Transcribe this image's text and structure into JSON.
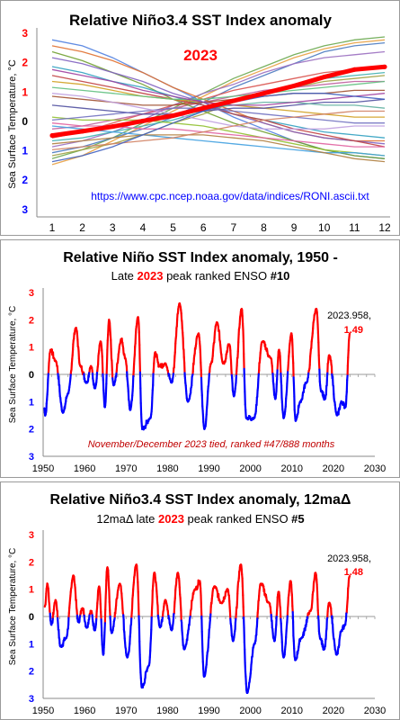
{
  "chart_data": [
    {
      "type": "line",
      "title": "Relative Niño3.4 SST Index anomaly",
      "ylabel": "Sea Surface Temperature, °C",
      "annotation_year": "2023",
      "source_text": "https://www.cpc.ncep.noaa.gov/data/indices/RONI.ascii.txt",
      "x": [
        1,
        2,
        3,
        4,
        5,
        6,
        7,
        8,
        9,
        10,
        11,
        12
      ],
      "xlim": [
        1,
        12
      ],
      "ylim": [
        -2.5,
        2.5
      ],
      "y_ticks": [
        "3",
        "2",
        "1",
        "0",
        "1",
        "2",
        "3"
      ],
      "highlight_series": {
        "name": "2023",
        "color": "#ff0000",
        "values": [
          -0.82,
          -0.68,
          -0.52,
          -0.33,
          -0.15,
          0.1,
          0.35,
          0.6,
          0.85,
          1.15,
          1.4,
          1.49
        ]
      },
      "background_series": [
        {
          "color": "#e8a040",
          "values": [
            -1.8,
            -1.5,
            -1.0,
            -0.5,
            0.0,
            0.5,
            1.0,
            1.4,
            1.8,
            2.1,
            2.3,
            2.4
          ]
        },
        {
          "color": "#6aa84f",
          "values": [
            -1.6,
            -1.3,
            -0.9,
            -0.4,
            0.1,
            0.6,
            1.1,
            1.5,
            1.9,
            2.2,
            2.4,
            2.5
          ]
        },
        {
          "color": "#4a7ac0",
          "values": [
            -1.4,
            -1.2,
            -0.9,
            -0.6,
            -0.2,
            0.3,
            0.8,
            1.2,
            1.6,
            2.0,
            2.2,
            2.3
          ]
        },
        {
          "color": "#9a6ec0",
          "values": [
            -1.2,
            -1.0,
            -0.7,
            -0.3,
            0.2,
            0.6,
            0.9,
            1.3,
            1.6,
            1.8,
            1.9,
            2.0
          ]
        },
        {
          "color": "#d9534f",
          "values": [
            -0.9,
            -0.7,
            -0.4,
            -0.1,
            0.2,
            0.4,
            0.7,
            0.9,
            1.1,
            1.3,
            1.4,
            1.5
          ]
        },
        {
          "color": "#40b0b0",
          "values": [
            -1.0,
            -0.9,
            -0.7,
            -0.5,
            -0.3,
            0.0,
            0.3,
            0.6,
            0.9,
            1.1,
            1.2,
            1.3
          ]
        },
        {
          "color": "#a0a040",
          "values": [
            -1.5,
            -1.3,
            -1.1,
            -0.8,
            -0.4,
            -0.1,
            0.3,
            0.6,
            0.8,
            1.0,
            1.1,
            1.2
          ]
        },
        {
          "color": "#c060a0",
          "values": [
            -0.6,
            -0.5,
            -0.3,
            -0.1,
            0.1,
            0.3,
            0.5,
            0.7,
            0.8,
            0.9,
            1.0,
            1.0
          ]
        },
        {
          "color": "#5080e0",
          "values": [
            2.4,
            2.2,
            1.8,
            1.3,
            0.8,
            0.3,
            -0.2,
            -0.6,
            -1.0,
            -1.3,
            -1.5,
            -1.6
          ]
        },
        {
          "color": "#e07030",
          "values": [
            2.2,
            2.0,
            1.7,
            1.3,
            0.8,
            0.4,
            0.0,
            -0.4,
            -0.7,
            -0.9,
            -1.0,
            -1.0
          ]
        },
        {
          "color": "#70a030",
          "values": [
            2.0,
            1.7,
            1.3,
            0.9,
            0.4,
            0.0,
            -0.4,
            -0.7,
            -1.0,
            -1.3,
            -1.5,
            -1.6
          ]
        },
        {
          "color": "#8060c0",
          "values": [
            1.8,
            1.6,
            1.3,
            1.0,
            0.6,
            0.3,
            -0.1,
            -0.4,
            -0.7,
            -0.9,
            -1.0,
            -1.1
          ]
        },
        {
          "color": "#30a0c0",
          "values": [
            1.5,
            1.3,
            1.0,
            0.8,
            0.5,
            0.2,
            -0.1,
            -0.3,
            -0.5,
            -0.7,
            -0.8,
            -0.9
          ]
        },
        {
          "color": "#c04040",
          "values": [
            1.2,
            1.0,
            0.8,
            0.6,
            0.4,
            0.2,
            -0.1,
            -0.3,
            -0.6,
            -0.8,
            -1.0,
            -1.2
          ]
        },
        {
          "color": "#d0a020",
          "values": [
            1.0,
            0.9,
            0.7,
            0.5,
            0.4,
            0.3,
            0.2,
            0.1,
            0.0,
            -0.1,
            -0.2,
            -0.2
          ]
        },
        {
          "color": "#60c080",
          "values": [
            0.8,
            0.7,
            0.6,
            0.5,
            0.4,
            0.4,
            0.5,
            0.6,
            0.7,
            0.8,
            0.9,
            1.0
          ]
        },
        {
          "color": "#a05030",
          "values": [
            0.5,
            0.4,
            0.3,
            0.2,
            0.2,
            0.3,
            0.4,
            0.5,
            0.6,
            0.6,
            0.7,
            0.7
          ]
        },
        {
          "color": "#5050a0",
          "values": [
            0.2,
            0.1,
            0.0,
            -0.1,
            -0.1,
            0.0,
            0.1,
            0.1,
            0.2,
            0.3,
            0.3,
            0.4
          ]
        },
        {
          "color": "#90c030",
          "values": [
            -0.2,
            -0.3,
            -0.3,
            -0.3,
            -0.4,
            -0.5,
            -0.7,
            -0.9,
            -1.1,
            -1.3,
            -1.4,
            -1.5
          ]
        },
        {
          "color": "#e060a0",
          "values": [
            -0.4,
            -0.5,
            -0.5,
            -0.6,
            -0.6,
            -0.7,
            -0.8,
            -0.9,
            -1.0,
            -1.1,
            -1.2,
            -1.2
          ]
        },
        {
          "color": "#40a0e0",
          "values": [
            -0.5,
            -0.6,
            -0.7,
            -0.8,
            -0.9,
            -1.0,
            -1.1,
            -1.2,
            -1.3,
            -1.4,
            -1.4,
            -1.5
          ]
        },
        {
          "color": "#b08040",
          "values": [
            -1.1,
            -1.0,
            -0.9,
            -0.8,
            -0.8,
            -0.8,
            -0.9,
            -1.0,
            -1.2,
            -1.4,
            -1.6,
            -1.7
          ]
        },
        {
          "color": "#7070c0",
          "values": [
            -0.3,
            -0.2,
            -0.1,
            0.0,
            0.1,
            0.1,
            0.0,
            -0.1,
            -0.2,
            -0.3,
            -0.4,
            -0.4
          ]
        },
        {
          "color": "#c0a0e0",
          "values": [
            0.6,
            0.5,
            0.3,
            0.1,
            -0.1,
            -0.3,
            -0.5,
            -0.6,
            -0.6,
            -0.6,
            -0.5,
            -0.5
          ]
        },
        {
          "color": "#60b0a0",
          "values": [
            -0.8,
            -0.7,
            -0.5,
            -0.3,
            -0.1,
            0.1,
            0.2,
            0.3,
            0.3,
            0.2,
            0.2,
            0.1
          ]
        },
        {
          "color": "#d08060",
          "values": [
            -1.3,
            -1.2,
            -1.1,
            -1.0,
            -0.9,
            -0.7,
            -0.5,
            -0.3,
            -0.2,
            -0.1,
            0.0,
            0.0
          ]
        },
        {
          "color": "#a040a0",
          "values": [
            1.4,
            1.2,
            1.0,
            0.7,
            0.5,
            0.3,
            0.2,
            0.2,
            0.3,
            0.4,
            0.5,
            0.6
          ]
        },
        {
          "color": "#4060c0",
          "values": [
            -1.7,
            -1.5,
            -1.2,
            -0.8,
            -0.4,
            0.0,
            0.3,
            0.5,
            0.6,
            0.6,
            0.5,
            0.4
          ]
        }
      ]
    },
    {
      "type": "area",
      "title": "Relative Niño SST Index anomaly, 1950 -",
      "subtitle_pre": "Late ",
      "subtitle_year": "2023",
      "subtitle_post": " peak ranked ENSO ",
      "subtitle_rank": "#10",
      "ylabel": "Sea Surface Temperature, °C",
      "peak_label": "2023.958,",
      "peak_value": "1.49",
      "note": "November/December 2023 tied, ranked #47/888 months",
      "x_ticks": [
        "1950",
        "1960",
        "1970",
        "1980",
        "1990",
        "2000",
        "2010",
        "2020",
        "2030"
      ],
      "y_ticks": [
        "3",
        "2",
        "1",
        "0",
        "1",
        "2",
        "3"
      ],
      "xlim": [
        1950,
        2030
      ],
      "ylim": [
        -3,
        3
      ],
      "positive_color": "#ff0000",
      "negative_color": "#0000ff",
      "events": [
        [
          1950.5,
          -1.5
        ],
        [
          1951.8,
          0.9
        ],
        [
          1953.0,
          0.5
        ],
        [
          1954.8,
          -1.4
        ],
        [
          1956.0,
          -0.7
        ],
        [
          1957.9,
          1.7
        ],
        [
          1959.0,
          0.3
        ],
        [
          1960.5,
          -0.3
        ],
        [
          1961.5,
          0.3
        ],
        [
          1962.5,
          -0.5
        ],
        [
          1963.9,
          1.2
        ],
        [
          1964.9,
          -1.2
        ],
        [
          1965.9,
          2.0
        ],
        [
          1967.0,
          -0.4
        ],
        [
          1968.9,
          1.3
        ],
        [
          1969.8,
          0.6
        ],
        [
          1971.0,
          -1.3
        ],
        [
          1972.9,
          2.1
        ],
        [
          1973.9,
          -2.0
        ],
        [
          1975.9,
          -1.6
        ],
        [
          1977.0,
          0.8
        ],
        [
          1978.0,
          0.3
        ],
        [
          1979.5,
          0.4
        ],
        [
          1981.0,
          -0.3
        ],
        [
          1982.9,
          2.6
        ],
        [
          1984.9,
          -1.0
        ],
        [
          1987.5,
          1.5
        ],
        [
          1988.9,
          -2.0
        ],
        [
          1990.5,
          0.4
        ],
        [
          1991.9,
          1.9
        ],
        [
          1993.5,
          0.4
        ],
        [
          1994.9,
          1.1
        ],
        [
          1996.0,
          -0.8
        ],
        [
          1997.9,
          2.4
        ],
        [
          1999.0,
          -1.6
        ],
        [
          2000.9,
          -1.6
        ],
        [
          2002.9,
          1.2
        ],
        [
          2004.9,
          0.6
        ],
        [
          2006.0,
          -0.9
        ],
        [
          2006.9,
          0.9
        ],
        [
          2008.0,
          -1.6
        ],
        [
          2009.9,
          1.5
        ],
        [
          2010.9,
          -1.7
        ],
        [
          2012.0,
          -1.0
        ],
        [
          2013.5,
          -0.3
        ],
        [
          2015.9,
          2.4
        ],
        [
          2017.0,
          -0.6
        ],
        [
          2018.0,
          -0.9
        ],
        [
          2019.0,
          0.7
        ],
        [
          2020.9,
          -1.5
        ],
        [
          2022.0,
          -1.0
        ],
        [
          2022.9,
          -1.2
        ],
        [
          2023.958,
          1.49
        ]
      ]
    },
    {
      "type": "area",
      "title": "Relative Niño3.4 SST Index anomaly, 12maΔ",
      "subtitle_pre": "12maΔ late ",
      "subtitle_year": "2023",
      "subtitle_post": " peak ranked ENSO ",
      "subtitle_rank": "#5",
      "ylabel": "Sea Surface Temperature, °C",
      "peak_label": "2023.958,",
      "peak_value": "1.48",
      "x_ticks": [
        "1950",
        "1960",
        "1970",
        "1980",
        "1990",
        "2000",
        "2010",
        "2020",
        "2030"
      ],
      "y_ticks": [
        "3",
        "2",
        "1",
        "0",
        "1",
        "2",
        "3"
      ],
      "xlim": [
        1950,
        2030
      ],
      "ylim": [
        -3,
        3
      ],
      "positive_color": "#ff0000",
      "negative_color": "#0000ff",
      "events": [
        [
          1951.0,
          1.2
        ],
        [
          1952.0,
          -0.3
        ],
        [
          1953.0,
          0.6
        ],
        [
          1954.2,
          -1.1
        ],
        [
          1955.5,
          -0.8
        ],
        [
          1957.3,
          1.5
        ],
        [
          1958.5,
          -0.2
        ],
        [
          1959.5,
          0.3
        ],
        [
          1960.5,
          -0.4
        ],
        [
          1961.5,
          0.2
        ],
        [
          1962.5,
          -0.5
        ],
        [
          1963.5,
          1.1
        ],
        [
          1964.5,
          -1.4
        ],
        [
          1965.5,
          1.8
        ],
        [
          1966.5,
          -0.6
        ],
        [
          1968.5,
          1.2
        ],
        [
          1970.3,
          -1.5
        ],
        [
          1972.5,
          1.9
        ],
        [
          1973.8,
          -2.6
        ],
        [
          1975.5,
          -1.8
        ],
        [
          1976.8,
          1.6
        ],
        [
          1978.2,
          -0.4
        ],
        [
          1979.5,
          0.6
        ],
        [
          1981.0,
          -0.5
        ],
        [
          1982.5,
          1.6
        ],
        [
          1984.0,
          -1.2
        ],
        [
          1986.7,
          1.0
        ],
        [
          1987.8,
          1.3
        ],
        [
          1988.8,
          -2.2
        ],
        [
          1991.3,
          1.1
        ],
        [
          1993.0,
          0.5
        ],
        [
          1994.5,
          1.0
        ],
        [
          1995.8,
          -0.9
        ],
        [
          1997.7,
          1.9
        ],
        [
          1999.2,
          -2.8
        ],
        [
          2001.0,
          -1.0
        ],
        [
          2002.5,
          1.2
        ],
        [
          2004.5,
          0.5
        ],
        [
          2005.8,
          -0.9
        ],
        [
          2006.8,
          0.9
        ],
        [
          2008.0,
          -1.5
        ],
        [
          2009.7,
          1.3
        ],
        [
          2010.8,
          -1.6
        ],
        [
          2012.2,
          -0.8
        ],
        [
          2014.5,
          0.2
        ],
        [
          2015.7,
          1.6
        ],
        [
          2016.8,
          -0.8
        ],
        [
          2017.8,
          -1.2
        ],
        [
          2019.0,
          0.5
        ],
        [
          2020.8,
          -1.4
        ],
        [
          2022.0,
          -0.5
        ],
        [
          2022.8,
          -0.3
        ],
        [
          2023.958,
          1.48
        ]
      ]
    }
  ]
}
